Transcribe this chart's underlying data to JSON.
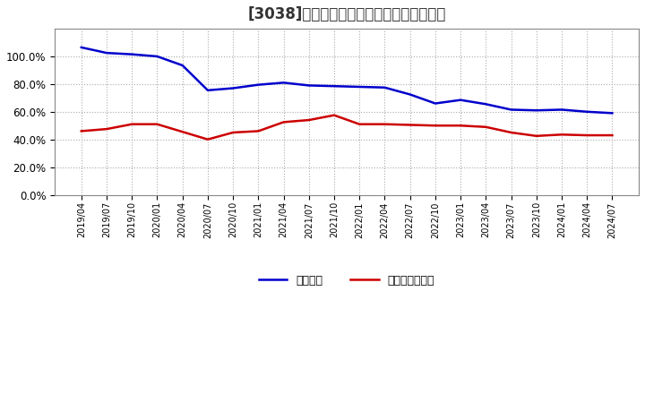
{
  "title": "[3038]　固定比率、固定長期適合率の推移",
  "x_labels": [
    "2019/04",
    "2019/07",
    "2019/10",
    "2020/01",
    "2020/04",
    "2020/07",
    "2020/10",
    "2021/01",
    "2021/04",
    "2021/07",
    "2021/10",
    "2022/01",
    "2022/04",
    "2022/07",
    "2022/10",
    "2023/01",
    "2023/04",
    "2023/07",
    "2023/10",
    "2024/01",
    "2024/04",
    "2024/07"
  ],
  "fixed_ratio": [
    106.5,
    102.5,
    101.5,
    100.0,
    93.5,
    75.5,
    77.0,
    79.5,
    81.0,
    79.0,
    78.5,
    78.0,
    77.5,
    72.5,
    66.0,
    68.5,
    65.5,
    61.5,
    61.0,
    61.5,
    60.0,
    59.0
  ],
  "fixed_longterm_ratio": [
    46.0,
    47.5,
    51.0,
    51.0,
    45.5,
    40.0,
    45.0,
    46.0,
    52.5,
    54.0,
    57.5,
    51.0,
    51.0,
    50.5,
    50.0,
    50.0,
    49.0,
    45.0,
    42.5,
    43.5,
    43.0,
    43.0
  ],
  "line_color_blue": "#0000cc",
  "line_color_red": "#cc0000",
  "background_color": "#ffffff",
  "grid_color": "#aaaaaa",
  "legend_blue": "固定比率",
  "legend_red": "固定長期適合率",
  "ylim": [
    0,
    120
  ],
  "yticks": [
    0,
    20,
    40,
    60,
    80,
    100
  ],
  "title_fontsize": 12
}
